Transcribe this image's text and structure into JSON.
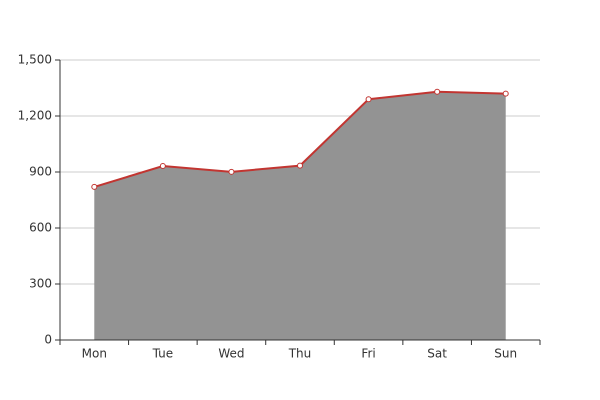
{
  "chart_data": {
    "type": "line",
    "area": true,
    "categories": [
      "Mon",
      "Tue",
      "Wed",
      "Thu",
      "Fri",
      "Sat",
      "Sun"
    ],
    "values": [
      820,
      932,
      901,
      934,
      1290,
      1330,
      1320
    ],
    "color": "#c23531",
    "area_color": "#939393",
    "ylim": [
      0,
      1500
    ],
    "yticks": [
      0,
      300,
      600,
      900,
      {
        "value": 1200,
        "label": "1,200"
      },
      {
        "value": 1500,
        "label": "1,500"
      }
    ],
    "grid": true
  }
}
